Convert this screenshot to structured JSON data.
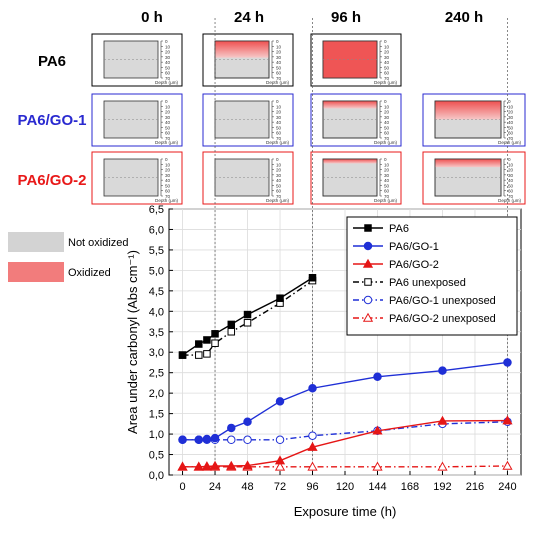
{
  "timepoints": [
    "0 h",
    "24 h",
    "96 h",
    "240 h"
  ],
  "materials": [
    {
      "label": "PA6",
      "color": "#000000"
    },
    {
      "label": "PA6/GO-1",
      "color": "#2a2ad0"
    },
    {
      "label": "PA6/GO-2",
      "color": "#e81919"
    }
  ],
  "depth_scale": {
    "ticks": [
      "0",
      "10",
      "20",
      "30",
      "40",
      "50",
      "60",
      "70"
    ],
    "label": "Depth (μm)"
  },
  "profile_legend": {
    "not_oxidized": {
      "label": "Not oxidized",
      "color": "#d3d3d3"
    },
    "oxidized": {
      "label": "Oxidized",
      "color": "#f27c7c"
    }
  },
  "profiles": [
    [
      null,
      {
        "ox_fraction": 0.45,
        "grad": true
      },
      {
        "ox_fraction": 1.0,
        "grad": false
      },
      null
    ],
    [
      {
        "ox_fraction": 0
      },
      {
        "ox_fraction": 0
      },
      {
        "ox_fraction": 0.2,
        "grad": true
      },
      {
        "ox_fraction": 0.5,
        "grad": true
      }
    ],
    [
      {
        "ox_fraction": 0
      },
      {
        "ox_fraction": 0
      },
      {
        "ox_fraction": 0.12,
        "grad": true
      },
      {
        "ox_fraction": 0.22,
        "grad": true
      }
    ]
  ],
  "row0_col0_ox": 0,
  "chart_data": {
    "type": "line",
    "xlabel": "Exposure time (h)",
    "ylabel": "Area under carbonyl (Abs cm⁻¹)",
    "xlim": [
      -10,
      250
    ],
    "ylim": [
      0,
      6.5
    ],
    "xticks": [
      "0",
      "24",
      "48",
      "72",
      "96",
      "120",
      "144",
      "168",
      "192",
      "216",
      "240"
    ],
    "yticks": [
      "0,0",
      "0,5",
      "1,0",
      "1,5",
      "2,0",
      "2,5",
      "3,0",
      "3,5",
      "4,0",
      "4,5",
      "5,0",
      "5,5",
      "6,0",
      "6,5"
    ],
    "grid": true,
    "legend_position": "top-right",
    "vertical_markers": [
      24,
      96,
      240
    ],
    "series": [
      {
        "name": "PA6",
        "color": "#000000",
        "marker": "square",
        "filled": true,
        "dash": "solid",
        "x": [
          0,
          12,
          18,
          24,
          36,
          48,
          72,
          96
        ],
        "y": [
          2.93,
          3.2,
          3.3,
          3.45,
          3.68,
          3.92,
          4.32,
          4.82
        ]
      },
      {
        "name": "PA6/GO-1",
        "color": "#1f2fd6",
        "marker": "circle",
        "filled": true,
        "dash": "solid",
        "x": [
          0,
          12,
          18,
          24,
          36,
          48,
          72,
          96,
          144,
          192,
          240
        ],
        "y": [
          0.86,
          0.86,
          0.88,
          0.9,
          1.15,
          1.3,
          1.8,
          2.12,
          2.4,
          2.55,
          2.75
        ]
      },
      {
        "name": "PA6/GO-2",
        "color": "#e51616",
        "marker": "triangle",
        "filled": true,
        "dash": "solid",
        "x": [
          0,
          12,
          18,
          24,
          36,
          48,
          72,
          96,
          144,
          192,
          240
        ],
        "y": [
          0.2,
          0.2,
          0.21,
          0.22,
          0.22,
          0.23,
          0.35,
          0.68,
          1.08,
          1.32,
          1.33
        ]
      },
      {
        "name": "PA6 unexposed",
        "color": "#000000",
        "marker": "square",
        "filled": false,
        "dash": "dashdot",
        "x": [
          0,
          12,
          18,
          24,
          36,
          48,
          72,
          96
        ],
        "y": [
          2.93,
          2.93,
          2.96,
          3.22,
          3.5,
          3.72,
          4.2,
          4.75
        ]
      },
      {
        "name": "PA6/GO-1 unexposed",
        "color": "#1f2fd6",
        "marker": "circle",
        "filled": false,
        "dash": "dashdot",
        "x": [
          0,
          12,
          18,
          24,
          36,
          48,
          72,
          96,
          144,
          192,
          240
        ],
        "y": [
          0.86,
          0.86,
          0.86,
          0.86,
          0.86,
          0.86,
          0.86,
          0.96,
          1.08,
          1.25,
          1.3
        ]
      },
      {
        "name": "PA6/GO-2 unexposed",
        "color": "#e51616",
        "marker": "triangle",
        "filled": false,
        "dash": "dashdot",
        "x": [
          0,
          12,
          18,
          24,
          36,
          48,
          72,
          96,
          144,
          192,
          240
        ],
        "y": [
          0.2,
          0.2,
          0.2,
          0.2,
          0.2,
          0.2,
          0.2,
          0.2,
          0.2,
          0.2,
          0.22
        ]
      }
    ]
  }
}
